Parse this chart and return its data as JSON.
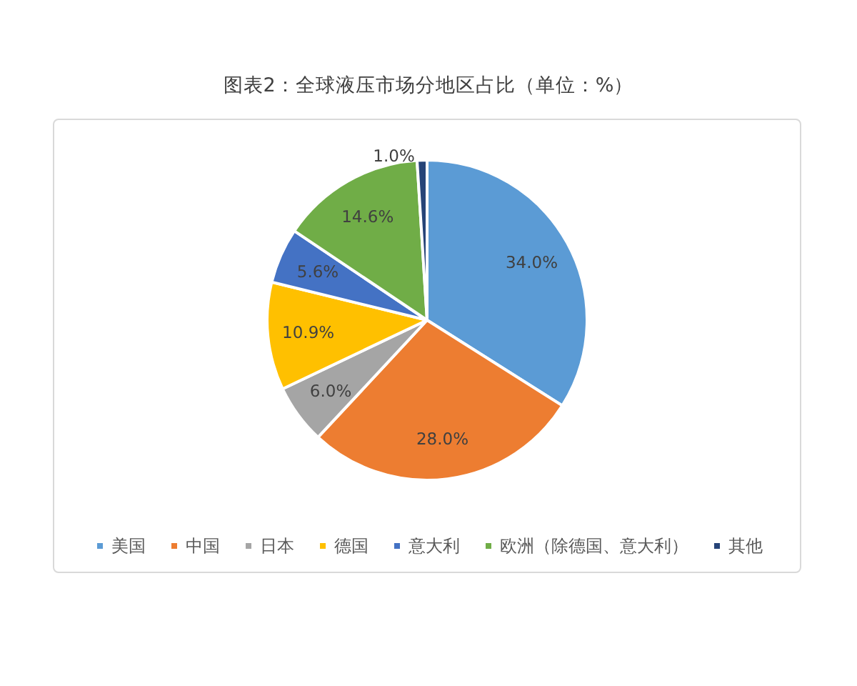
{
  "chart_data": {
    "type": "pie",
    "title": "图表2：全球液压市场分地区占比（单位：%）",
    "categories": [
      "美国",
      "中国",
      "日本",
      "德国",
      "意大利",
      "欧洲（除德国、意大利）",
      "其他"
    ],
    "values": [
      34.0,
      28.0,
      6.0,
      10.9,
      5.6,
      14.6,
      1.0
    ],
    "colors": [
      "#5b9bd5",
      "#ed7d31",
      "#a5a5a5",
      "#ffc000",
      "#4472c4",
      "#70ad47",
      "#264478"
    ],
    "value_labels": [
      "34.0%",
      "28.0%",
      "6.0%",
      "10.9%",
      "5.6%",
      "14.6%",
      "1.0%"
    ],
    "legend": "bottom"
  }
}
